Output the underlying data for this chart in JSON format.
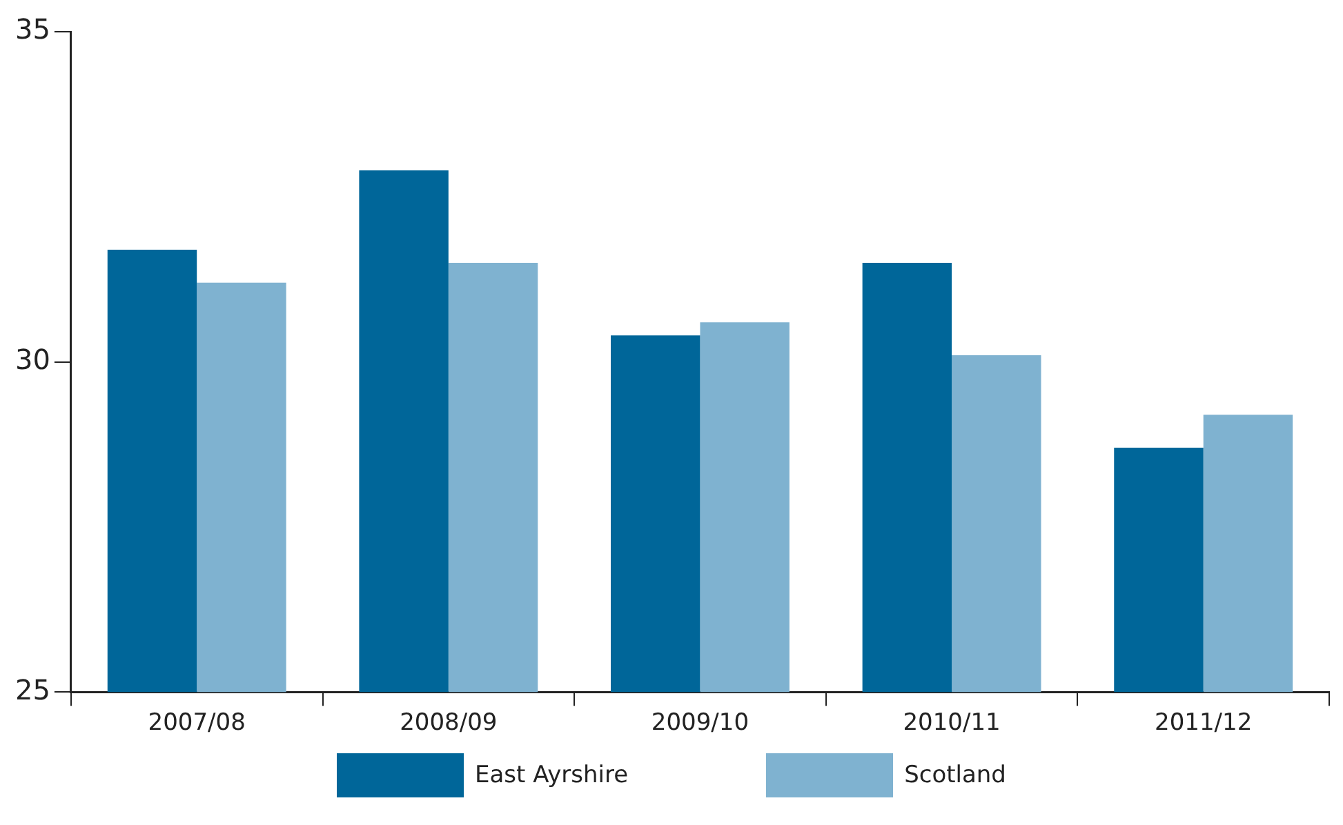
{
  "chart_data": {
    "type": "bar",
    "categories": [
      "2007/08",
      "2008/09",
      "2009/10",
      "2010/11",
      "2011/12"
    ],
    "series": [
      {
        "name": "East Ayrshire",
        "color": "#006699",
        "values": [
          31.7,
          32.9,
          30.4,
          31.5,
          28.7
        ]
      },
      {
        "name": "Scotland",
        "color": "#7fb2d0",
        "values": [
          31.2,
          31.5,
          30.6,
          30.1,
          29.2
        ]
      }
    ],
    "ylim": [
      25,
      35
    ],
    "yticks": [
      25,
      30,
      35
    ],
    "grid": false,
    "legend": "bottom"
  }
}
